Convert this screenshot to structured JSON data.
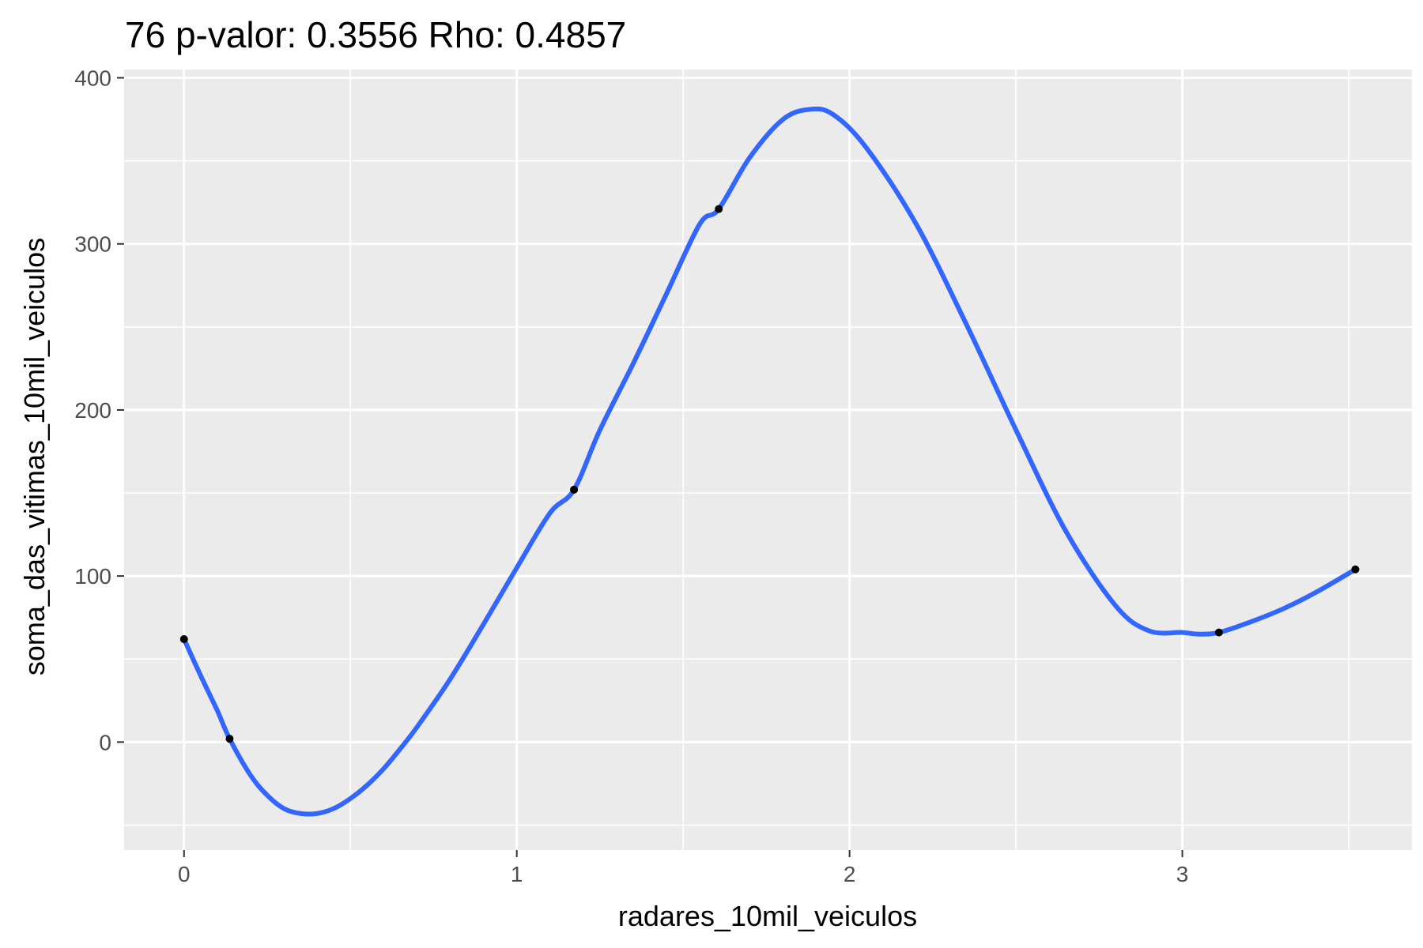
{
  "chart_data": {
    "type": "scatter",
    "title": "76 p-valor: 0.3556 Rho: 0.4857",
    "xlabel": "radares_10mil_veiculos",
    "ylabel": "soma_das_vitimas_10mil_veiculos",
    "xlim": [
      -0.18,
      3.69
    ],
    "ylim": [
      -65,
      405
    ],
    "x_ticks": [
      0,
      1,
      2,
      3
    ],
    "x_tick_labels": [
      "0",
      "1",
      "2",
      "3"
    ],
    "y_ticks": [
      0,
      100,
      200,
      300,
      400
    ],
    "y_tick_labels": [
      "0",
      "100",
      "200",
      "300",
      "400"
    ],
    "grid": true,
    "legend": "none",
    "points": {
      "x": [
        0.0,
        0.137,
        1.172,
        1.607,
        3.11,
        3.52
      ],
      "y": [
        62,
        2,
        152,
        321,
        66,
        104
      ]
    },
    "smooth_curve": {
      "x": [
        0.0,
        0.05,
        0.1,
        0.137,
        0.2,
        0.25,
        0.3,
        0.35,
        0.4,
        0.45,
        0.5,
        0.55,
        0.6,
        0.65,
        0.7,
        0.8,
        0.9,
        1.0,
        1.1,
        1.172,
        1.25,
        1.35,
        1.45,
        1.55,
        1.607,
        1.7,
        1.8,
        1.88,
        1.95,
        2.05,
        2.2,
        2.35,
        2.5,
        2.65,
        2.8,
        2.9,
        3.0,
        3.05,
        3.11,
        3.2,
        3.3,
        3.4,
        3.52
      ],
      "y": [
        62,
        40,
        19,
        2,
        -20,
        -32,
        -40,
        -43,
        -43,
        -40,
        -34,
        -26,
        -16,
        -4,
        9,
        38,
        71,
        105,
        138,
        152,
        188,
        228,
        270,
        312,
        321,
        352,
        375,
        381,
        378,
        358,
        312,
        252,
        188,
        127,
        82,
        67,
        66,
        65,
        66,
        72,
        80,
        90,
        104
      ]
    },
    "colors": {
      "panel_background": "#ebebeb",
      "grid_line": "#ffffff",
      "curve": "#3366ff",
      "point": "#000000",
      "tick_mark": "#333333",
      "tick_label": "#4d4d4d"
    }
  }
}
